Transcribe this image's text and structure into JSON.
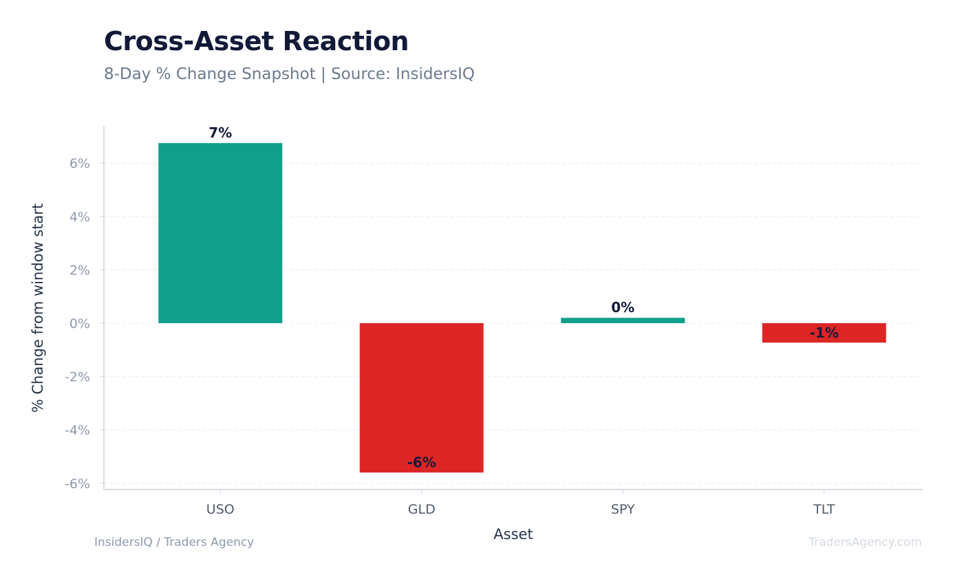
{
  "header": {
    "title": "Cross-Asset Reaction",
    "subtitle": "8-Day % Change Snapshot | Source: InsidersIQ"
  },
  "footer": {
    "left": "InsidersIQ / Traders Agency",
    "right": "TradersAgency.com"
  },
  "colors": {
    "positive": "#10a08a",
    "negative": "#dc2626",
    "grid": "#e8ecf1",
    "axis": "#c8d0da"
  },
  "chart_data": {
    "type": "bar",
    "title": "Cross-Asset Reaction",
    "subtitle": "8-Day % Change Snapshot | Source: InsidersIQ",
    "xlabel": "Asset",
    "ylabel": "% Change from window start",
    "categories": [
      "USO",
      "GLD",
      "SPY",
      "TLT"
    ],
    "values": [
      6.75,
      -5.6,
      0.2,
      -0.73
    ],
    "data_labels": [
      "7%",
      "-6%",
      "0%",
      "-1%"
    ],
    "ylim": [
      -6.2,
      7.4
    ],
    "yticks": [
      6,
      4,
      2,
      0,
      -2,
      -4,
      -6
    ],
    "ytick_labels": [
      "6%",
      "4%",
      "2%",
      "0%",
      "-2%",
      "-4%",
      "-6%"
    ],
    "grid": true,
    "legend": "none"
  }
}
